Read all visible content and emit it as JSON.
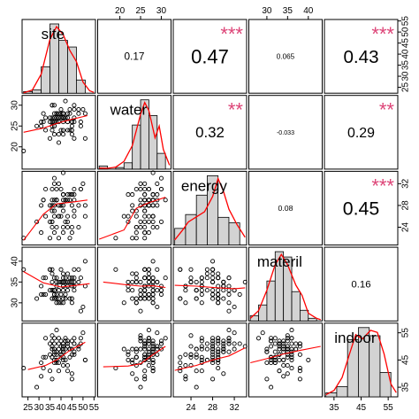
{
  "chart_data": {
    "type": "scatterplot-matrix",
    "variables": [
      "site",
      "water",
      "energy",
      "materil",
      "indoor"
    ],
    "ranges": {
      "site": [
        23,
        55
      ],
      "water": [
        15,
        32
      ],
      "energy": [
        21,
        34
      ],
      "materil": [
        26,
        43
      ],
      "indoor": [
        32,
        58
      ]
    },
    "ticks": {
      "site": [
        "25",
        "30",
        "35",
        "40",
        "45",
        "50",
        "55"
      ],
      "water": [
        "20",
        "25",
        "30"
      ],
      "energy": [
        "24",
        "28",
        "32"
      ],
      "materil": [
        "30",
        "35",
        "40"
      ],
      "indoor": [
        "35",
        "45",
        "55"
      ]
    },
    "axis_top": [
      {
        "var": "water",
        "ticks": [
          "20",
          "25",
          "30"
        ]
      },
      {
        "var": "materil",
        "ticks": [
          "30",
          "35",
          "40"
        ]
      }
    ],
    "axis_bottom": [
      {
        "var": "site",
        "ticks": [
          "25",
          "30",
          "35",
          "40",
          "45",
          "50",
          "55"
        ]
      },
      {
        "var": "energy",
        "ticks": [
          "24",
          "28",
          "32"
        ]
      },
      {
        "var": "indoor",
        "ticks": [
          "35",
          "45",
          "55"
        ]
      }
    ],
    "axis_left": [
      {
        "var": "water",
        "ticks": [
          "20",
          "25",
          "30"
        ]
      },
      {
        "var": "materil",
        "ticks": [
          "30",
          "35",
          "40"
        ]
      }
    ],
    "axis_right": [
      {
        "var": "site",
        "ticks": [
          "25",
          "30",
          "35",
          "40",
          "45",
          "50",
          "55"
        ]
      },
      {
        "var": "energy",
        "ticks": [
          "24",
          "28",
          "32"
        ]
      },
      {
        "var": "indoor",
        "ticks": [
          "35",
          "45",
          "55"
        ]
      }
    ],
    "correlations": [
      {
        "row": "site",
        "col": "water",
        "r": "0.17",
        "stars": ""
      },
      {
        "row": "site",
        "col": "energy",
        "r": "0.47",
        "stars": "***"
      },
      {
        "row": "site",
        "col": "materil",
        "r": "0.065",
        "stars": ""
      },
      {
        "row": "site",
        "col": "indoor",
        "r": "0.43",
        "stars": "***"
      },
      {
        "row": "water",
        "col": "energy",
        "r": "0.32",
        "stars": "**"
      },
      {
        "row": "water",
        "col": "materil",
        "r": "-0.033",
        "stars": ""
      },
      {
        "row": "water",
        "col": "indoor",
        "r": "0.29",
        "stars": "**"
      },
      {
        "row": "energy",
        "col": "materil",
        "r": "0.08",
        "stars": ""
      },
      {
        "row": "energy",
        "col": "indoor",
        "r": "0.45",
        "stars": "***"
      },
      {
        "row": "materil",
        "col": "indoor",
        "r": "0.16",
        "stars": ""
      }
    ],
    "histograms": {
      "site": {
        "breaks": [
          23,
          27,
          31,
          35,
          39,
          43,
          47,
          51,
          55
        ],
        "counts": [
          1,
          2,
          16,
          42,
          32,
          28,
          8,
          0
        ],
        "density": [
          [
            23,
            0.2
          ],
          [
            27,
            2
          ],
          [
            31,
            12
          ],
          [
            35,
            34
          ],
          [
            38,
            42
          ],
          [
            41,
            37
          ],
          [
            44,
            27
          ],
          [
            47,
            20
          ],
          [
            50,
            7
          ],
          [
            53,
            1.5
          ],
          [
            55,
            0.5
          ]
        ]
      },
      "water": {
        "breaks": [
          15,
          17,
          19,
          21,
          23,
          25,
          27,
          29,
          31
        ],
        "counts": [
          2,
          0,
          1,
          4,
          28,
          44,
          34,
          10
        ],
        "density": [
          [
            15,
            0.5
          ],
          [
            17,
            0.4
          ],
          [
            19,
            1
          ],
          [
            21,
            4
          ],
          [
            23,
            12
          ],
          [
            25,
            28
          ],
          [
            26,
            34
          ],
          [
            27,
            30
          ],
          [
            28.5,
            16
          ],
          [
            29.5,
            22
          ],
          [
            30.5,
            10
          ],
          [
            32,
            2
          ]
        ]
      },
      "energy": {
        "breaks": [
          21,
          23,
          25,
          27,
          29,
          31,
          33
        ],
        "counts": [
          6,
          11,
          18,
          25,
          10,
          8
        ],
        "density": [
          [
            21,
            2
          ],
          [
            22.5,
            6
          ],
          [
            23.5,
            9
          ],
          [
            25,
            11
          ],
          [
            26.5,
            13
          ],
          [
            28,
            19
          ],
          [
            29,
            26
          ],
          [
            30,
            21
          ],
          [
            31,
            14
          ],
          [
            32.5,
            8
          ],
          [
            34,
            3
          ]
        ]
      },
      "materil": {
        "breaks": [
          26,
          28,
          30,
          32,
          34,
          36,
          38,
          40,
          42
        ],
        "counts": [
          2,
          6,
          15,
          26,
          24,
          11,
          4,
          1
        ],
        "density": [
          [
            26,
            1
          ],
          [
            28,
            4
          ],
          [
            30,
            12
          ],
          [
            32,
            22
          ],
          [
            33.5,
            26
          ],
          [
            35,
            22
          ],
          [
            37,
            14
          ],
          [
            38.5,
            10
          ],
          [
            40,
            3
          ],
          [
            42,
            1
          ],
          [
            43,
            0.5
          ]
        ]
      },
      "indoor": {
        "breaks": [
          32,
          36,
          40,
          44,
          48,
          52,
          56
        ],
        "counts": [
          2,
          5,
          28,
          34,
          30,
          12
        ],
        "density": [
          [
            32,
            1
          ],
          [
            35,
            3
          ],
          [
            38,
            9
          ],
          [
            41,
            21
          ],
          [
            43,
            29
          ],
          [
            45.5,
            27
          ],
          [
            48.5,
            31
          ],
          [
            51,
            30
          ],
          [
            53.5,
            20
          ],
          [
            56,
            6
          ],
          [
            58,
            2
          ]
        ]
      }
    },
    "lowess": {
      "water|site": [
        [
          23,
          23.5
        ],
        [
          32,
          24.5
        ],
        [
          38,
          25.6
        ],
        [
          44,
          26.5
        ],
        [
          52,
          27.5
        ]
      ],
      "energy|site": [
        [
          23,
          21.6
        ],
        [
          32,
          26.4
        ],
        [
          38,
          28.3
        ],
        [
          45,
          28.6
        ],
        [
          52,
          29.0
        ]
      ],
      "energy|water": [
        [
          15,
          21.8
        ],
        [
          21,
          23.5
        ],
        [
          24,
          27.5
        ],
        [
          27,
          28.5
        ],
        [
          31,
          29.5
        ]
      ],
      "materil|site": [
        [
          23,
          37.5
        ],
        [
          32,
          34.8
        ],
        [
          40,
          33.8
        ],
        [
          47,
          34.2
        ],
        [
          53,
          34.6
        ]
      ],
      "materil|water": [
        [
          16,
          35.0
        ],
        [
          21,
          34.4
        ],
        [
          25,
          34.0
        ],
        [
          28,
          34.1
        ],
        [
          31,
          33.7
        ]
      ],
      "materil|energy": [
        [
          21,
          34.2
        ],
        [
          25,
          34.0
        ],
        [
          29,
          33.6
        ],
        [
          32,
          33.4
        ],
        [
          34,
          33.6
        ]
      ],
      "indoor|site": [
        [
          25,
          41.5
        ],
        [
          33,
          43.0
        ],
        [
          38,
          45.0
        ],
        [
          44,
          48.5
        ],
        [
          51,
          51.5
        ]
      ],
      "indoor|water": [
        [
          16,
          42.5
        ],
        [
          22,
          42.8
        ],
        [
          25,
          43.6
        ],
        [
          28,
          47.0
        ],
        [
          31,
          50.0
        ]
      ],
      "indoor|energy": [
        [
          21,
          41.2
        ],
        [
          25,
          43.0
        ],
        [
          28,
          45.0
        ],
        [
          31,
          46.5
        ],
        [
          34,
          49.5
        ]
      ],
      "indoor|materil": [
        [
          26,
          44.0
        ],
        [
          30,
          45.5
        ],
        [
          34,
          47.2
        ],
        [
          38,
          48.5
        ],
        [
          43,
          50.0
        ]
      ]
    },
    "points": {
      "site": [
        40,
        41,
        31,
        35,
        37,
        39,
        43,
        36,
        37,
        42,
        51,
        38,
        32,
        40,
        46,
        37,
        43,
        43,
        37,
        36,
        35,
        37,
        43,
        44,
        48,
        43,
        36,
        41,
        38,
        41,
        23,
        45,
        39,
        36,
        38,
        38,
        36,
        41,
        41,
        50,
        45,
        49,
        44,
        46,
        48,
        29,
        41,
        38,
        40,
        33,
        45,
        40,
        41,
        35,
        42,
        39,
        36,
        45,
        32,
        46,
        41,
        45,
        49,
        44,
        46,
        36,
        39,
        42,
        42,
        36,
        31,
        33,
        51,
        39,
        38,
        40,
        41,
        37,
        37,
        46
      ],
      "water": [
        27,
        26,
        25,
        22,
        30,
        26,
        24,
        26,
        28,
        27,
        22,
        28,
        28,
        29,
        22,
        25,
        28,
        27,
        27,
        24,
        27,
        25,
        26,
        24,
        28,
        26,
        26,
        24,
        27,
        28,
        19,
        26,
        28,
        25,
        26,
        28,
        27,
        27,
        28,
        29,
        25,
        25,
        29,
        30,
        29,
        25,
        28,
        26,
        24,
        24,
        26,
        28,
        28,
        26,
        27,
        27,
        26,
        24,
        26,
        26,
        23,
        23,
        26,
        28,
        29,
        30,
        23,
        31,
        27,
        30,
        26,
        27,
        28,
        21,
        28,
        27,
        28,
        26,
        23,
        27
      ],
      "energy": [
        28,
        27,
        28,
        25,
        33,
        32,
        24,
        28,
        26,
        29,
        26,
        29,
        29,
        28,
        30,
        29,
        25,
        29,
        28,
        27,
        28,
        32,
        26,
        22,
        28,
        30,
        28,
        24,
        31,
        29,
        22,
        24,
        26,
        24,
        29,
        24,
        29,
        23,
        30,
        32,
        28,
        31,
        30,
        31,
        24,
        25,
        30,
        29,
        31,
        26,
        30,
        26,
        30,
        22,
        25,
        28,
        25,
        23,
        29,
        27,
        28,
        30,
        31,
        29,
        29,
        25,
        22,
        29,
        29,
        31,
        23,
        31,
        28,
        26,
        29,
        28,
        34,
        23,
        27,
        26
      ],
      "materil": [
        38,
        36,
        32,
        33,
        32,
        33,
        35,
        38,
        32,
        32,
        34,
        30,
        36,
        35,
        35,
        31,
        33,
        37,
        36,
        37,
        38,
        33,
        34,
        31,
        35,
        34,
        33,
        35,
        36,
        30,
        38,
        36,
        33,
        35,
        31,
        35,
        31,
        34,
        33,
        29,
        31,
        28,
        35,
        34,
        38,
        31,
        31,
        34,
        30,
        36,
        34,
        35,
        34,
        38,
        35,
        35,
        31,
        30,
        32,
        38,
        37,
        35,
        36,
        36,
        33,
        33,
        31,
        36,
        31,
        33,
        34,
        32,
        40,
        30,
        32,
        32,
        35,
        33,
        33,
        36
      ],
      "indoor": [
        47,
        45,
        44,
        47,
        51,
        51,
        43,
        38,
        44,
        45,
        45,
        44,
        42,
        50,
        48,
        53,
        41,
        51,
        48,
        49,
        51,
        49,
        50,
        46,
        49,
        52,
        50,
        46,
        56,
        48,
        42,
        47,
        41,
        54,
        45,
        47,
        46,
        43,
        51,
        55,
        52,
        53,
        49,
        51,
        50,
        35,
        50,
        45,
        48,
        46,
        49,
        52,
        48,
        41,
        49,
        53,
        46,
        38,
        46,
        51,
        49,
        40,
        51,
        49,
        47,
        49,
        44,
        53,
        52,
        52,
        39,
        53,
        45,
        49,
        48,
        46,
        50,
        47,
        45,
        53
      ]
    }
  }
}
